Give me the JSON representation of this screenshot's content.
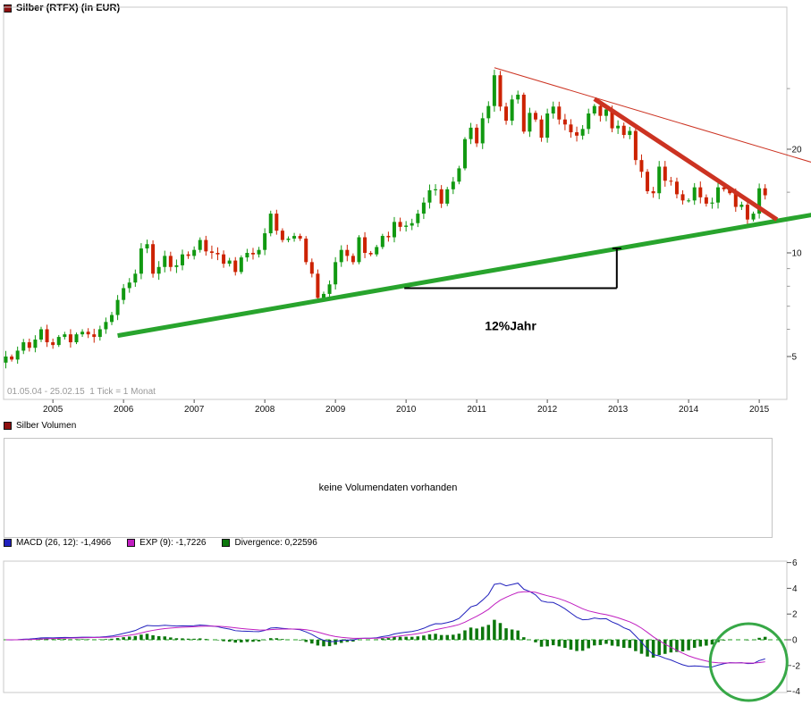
{
  "header": {
    "title": "Silber (RTFX) (in EUR)",
    "period_note": "01.05.04 - 25.02.15  1 Tick = 1 Monat"
  },
  "volume": {
    "title": "Silber Volumen",
    "message": "keine Volumendaten vorhanden"
  },
  "macd": {
    "legend": [
      {
        "label": "MACD (26, 12): -1,4966",
        "color": "#2121bd"
      },
      {
        "label": "EXP (9): -1,7226",
        "color": "#c01ec0"
      },
      {
        "label": "Divergence: 0,22596",
        "color": "#0c770c"
      }
    ]
  },
  "styles": {
    "maroon": "#8f1010"
  },
  "chart_data": [
    {
      "type": "candlestick",
      "title": "Silber (RTFX) (in EUR)",
      "x_unit": "month",
      "x_start": "2004-05",
      "x_end": "2015-02",
      "x_tick_labels": [
        "2005",
        "2006",
        "2007",
        "2008",
        "2009",
        "2010",
        "2011",
        "2012",
        "2013",
        "2014",
        "2015"
      ],
      "y_scale": "log",
      "y_tick_labels": [
        20,
        10,
        5
      ],
      "y_minor_ticks": [
        30,
        15,
        9,
        8,
        7,
        6
      ],
      "first_open": 4.8,
      "closes": [
        5.0,
        4.9,
        5.2,
        5.5,
        5.3,
        5.6,
        6.0,
        5.5,
        5.4,
        5.7,
        5.8,
        5.5,
        5.8,
        5.9,
        5.8,
        5.7,
        6.0,
        6.3,
        6.6,
        7.3,
        7.9,
        8.2,
        8.7,
        10.3,
        10.6,
        8.7,
        9.1,
        9.8,
        9.1,
        9.2,
        9.9,
        9.8,
        10.2,
        10.9,
        10.1,
        10.0,
        9.9,
        9.3,
        9.5,
        8.8,
        9.7,
        10.0,
        9.9,
        10.2,
        11.4,
        13.0,
        11.6,
        10.9,
        11.0,
        11.2,
        11.0,
        9.4,
        8.7,
        7.4,
        7.6,
        8.1,
        9.4,
        10.2,
        9.8,
        9.4,
        11.1,
        10.0,
        9.9,
        10.4,
        11.2,
        11.1,
        12.3,
        11.9,
        12.0,
        12.2,
        13.0,
        14.0,
        15.2,
        15.3,
        13.9,
        15.3,
        16.1,
        17.6,
        21.4,
        23.1,
        20.8,
        24.6,
        26.7,
        32.8,
        26.6,
        24.2,
        27.9,
        28.8,
        22.5,
        25.5,
        24.4,
        21.6,
        25.4,
        26.6,
        24.4,
        23.6,
        22.4,
        21.9,
        22.9,
        25.4,
        26.7,
        25.0,
        26.1,
        23.0,
        23.4,
        22.0,
        22.6,
        18.6,
        17.2,
        15.1,
        14.9,
        17.8,
        16.2,
        16.1,
        14.8,
        14.2,
        14.2,
        15.5,
        14.5,
        13.9,
        14.0,
        15.5,
        15.3,
        14.9,
        13.6,
        13.8,
        12.5,
        13.0,
        15.4,
        14.7
      ],
      "up_color": "#119911",
      "down_color": "#cc2200",
      "trendlines": [
        {
          "name": "uptrend-support-line",
          "color": "#28a42d",
          "width": 5,
          "from_month": 19,
          "from_price": 5.75,
          "to_month": 137,
          "to_price": 12.9
        },
        {
          "name": "downtrend-main-line",
          "color": "#cc3322",
          "width": 5,
          "from_month": 100,
          "from_price": 28.0,
          "to_month": 131,
          "to_price": 12.5
        },
        {
          "name": "downtrend-extended-line",
          "color": "#cc3322",
          "width": 1,
          "from_month": 83,
          "from_price": 34.5,
          "to_month": 137,
          "to_price": 18.3
        }
      ],
      "slope_marker": {
        "label": "12%Jahr",
        "from_month": 67.7,
        "to_month": 103.8,
        "base_price": 7.9,
        "top_price": 10.3
      }
    },
    {
      "type": "line",
      "name": "MACD",
      "params": {
        "fast": 12,
        "slow": 26,
        "signal": 9
      },
      "y_tick_labels": [
        6,
        4,
        2,
        0,
        -2,
        -4
      ],
      "current": {
        "macd": -1.4966,
        "exp": -1.7226,
        "divergence": 0.22596
      },
      "colors": {
        "macd": "#2121bd",
        "exp": "#c01ec0",
        "divergence": "#0c770c",
        "zero_line": "#22a022",
        "circle": "#37a847"
      },
      "circle_annotation": {
        "month_index": 126.2,
        "value": -1.74,
        "radius": 43
      }
    }
  ]
}
